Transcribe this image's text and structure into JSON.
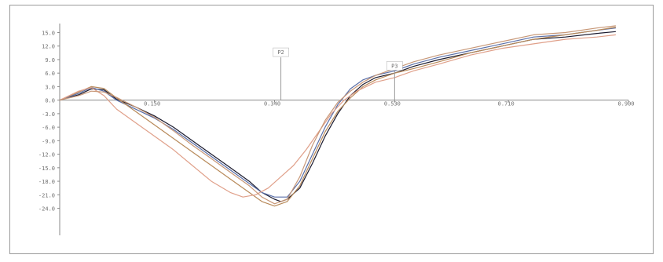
{
  "chart_data": {
    "type": "line",
    "title": "",
    "xlabel": "",
    "ylabel": "",
    "xlim": [
      0,
      0.9
    ],
    "ylim": [
      -30,
      17
    ],
    "x_ticks": [
      {
        "value": 0.15,
        "label": "0.150"
      },
      {
        "value": 0.34,
        "label": "0.340"
      },
      {
        "value": 0.53,
        "label": "0.530"
      },
      {
        "value": 0.71,
        "label": "0.710"
      },
      {
        "value": 0.9,
        "label": "0.900"
      }
    ],
    "y_ticks": [
      {
        "value": 15,
        "label": "15.0"
      },
      {
        "value": 12,
        "label": "12.0"
      },
      {
        "value": 9,
        "label": "9.0"
      },
      {
        "value": 6,
        "label": "6.0"
      },
      {
        "value": 3,
        "label": "3.0"
      },
      {
        "value": 0,
        "label": "0.0"
      },
      {
        "value": -3,
        "label": "-3.0"
      },
      {
        "value": -6,
        "label": "-6.0"
      },
      {
        "value": -9,
        "label": "-9.0"
      },
      {
        "value": -12,
        "label": "-12.0"
      },
      {
        "value": -15,
        "label": "-15.0"
      },
      {
        "value": -18,
        "label": "-18.0"
      },
      {
        "value": -21,
        "label": "-21.0"
      },
      {
        "value": -24,
        "label": "-24.0"
      }
    ],
    "annotations": [
      {
        "label": "P2",
        "x": 0.35,
        "y_top": 9.5
      },
      {
        "label": "P3",
        "x": 0.53,
        "y_top": 6.5
      }
    ],
    "series": [
      {
        "color": "#1a1a2e",
        "x": [
          0,
          0.03,
          0.05,
          0.07,
          0.09,
          0.12,
          0.15,
          0.18,
          0.21,
          0.24,
          0.27,
          0.3,
          0.32,
          0.34,
          0.35,
          0.36,
          0.38,
          0.4,
          0.42,
          0.44,
          0.46,
          0.48,
          0.5,
          0.53,
          0.56,
          0.6,
          0.65,
          0.7,
          0.75,
          0.8,
          0.85,
          0.88
        ],
        "y": [
          0,
          1.2,
          2.5,
          2.3,
          0.2,
          -1.5,
          -3.5,
          -6,
          -9,
          -12,
          -15,
          -18,
          -20.5,
          -22,
          -22.5,
          -22,
          -19.5,
          -14,
          -8,
          -3,
          1,
          3.5,
          5,
          6,
          7.5,
          9,
          10.5,
          12,
          13.5,
          14,
          14.8,
          15.2
        ]
      },
      {
        "color": "#5a6fa8",
        "x": [
          0,
          0.03,
          0.05,
          0.07,
          0.09,
          0.12,
          0.15,
          0.18,
          0.21,
          0.24,
          0.27,
          0.3,
          0.32,
          0.34,
          0.36,
          0.38,
          0.4,
          0.42,
          0.44,
          0.46,
          0.48,
          0.5,
          0.53,
          0.56,
          0.6,
          0.65,
          0.7,
          0.75,
          0.8,
          0.85,
          0.88
        ],
        "y": [
          0,
          1.5,
          2.8,
          2,
          0,
          -2,
          -4,
          -6.5,
          -9.5,
          -12.5,
          -15.5,
          -18.5,
          -20.5,
          -21.5,
          -21.5,
          -18,
          -12,
          -6,
          -1,
          2.5,
          4.5,
          5.5,
          6.5,
          8,
          9.5,
          11,
          12.5,
          14,
          14.5,
          15.5,
          16
        ]
      },
      {
        "color": "#b88a5a",
        "x": [
          0,
          0.03,
          0.05,
          0.07,
          0.09,
          0.12,
          0.15,
          0.18,
          0.21,
          0.24,
          0.27,
          0.3,
          0.32,
          0.34,
          0.36,
          0.38,
          0.4,
          0.42,
          0.44,
          0.46,
          0.48,
          0.5,
          0.53,
          0.56,
          0.6,
          0.65,
          0.7,
          0.75,
          0.8,
          0.85,
          0.88
        ],
        "y": [
          0,
          1.8,
          3,
          2.6,
          0.5,
          -2.5,
          -5.5,
          -8.5,
          -11.5,
          -14.5,
          -17.5,
          -20.5,
          -22.5,
          -23.5,
          -22.5,
          -19,
          -13,
          -7,
          -2.5,
          0.5,
          3,
          4.5,
          6,
          7,
          8.5,
          10.5,
          12,
          13.5,
          14.5,
          15.5,
          16.2
        ]
      },
      {
        "color": "#e0a08a",
        "x": [
          0,
          0.03,
          0.05,
          0.07,
          0.09,
          0.12,
          0.15,
          0.18,
          0.21,
          0.24,
          0.27,
          0.29,
          0.31,
          0.33,
          0.35,
          0.37,
          0.39,
          0.41,
          0.43,
          0.45,
          0.47,
          0.5,
          0.53,
          0.56,
          0.6,
          0.65,
          0.7,
          0.75,
          0.8,
          0.85,
          0.88
        ],
        "y": [
          0,
          2,
          2.8,
          1,
          -2,
          -5,
          -8,
          -11,
          -14.5,
          -18,
          -20.5,
          -21.5,
          -21,
          -19.5,
          -17,
          -14.5,
          -11,
          -7,
          -3,
          0,
          2,
          4,
          5,
          6.5,
          8,
          10,
          11.5,
          12.5,
          13.5,
          14,
          14.5
        ]
      },
      {
        "color": "#c89878",
        "x": [
          0,
          0.03,
          0.05,
          0.07,
          0.09,
          0.12,
          0.15,
          0.18,
          0.21,
          0.24,
          0.27,
          0.3,
          0.32,
          0.34,
          0.36,
          0.38,
          0.4,
          0.42,
          0.44,
          0.46,
          0.48,
          0.5,
          0.53,
          0.56,
          0.6,
          0.65,
          0.7,
          0.75,
          0.8,
          0.85,
          0.88
        ],
        "y": [
          0,
          1,
          2,
          1.8,
          0.6,
          -1.5,
          -3.8,
          -6.8,
          -10,
          -13,
          -16,
          -19,
          -21.5,
          -23,
          -22,
          -17,
          -10,
          -4.5,
          -0.5,
          2,
          4,
          5.5,
          7,
          8.5,
          10,
          11.5,
          13,
          14.5,
          15,
          16,
          16.5
        ]
      }
    ]
  }
}
